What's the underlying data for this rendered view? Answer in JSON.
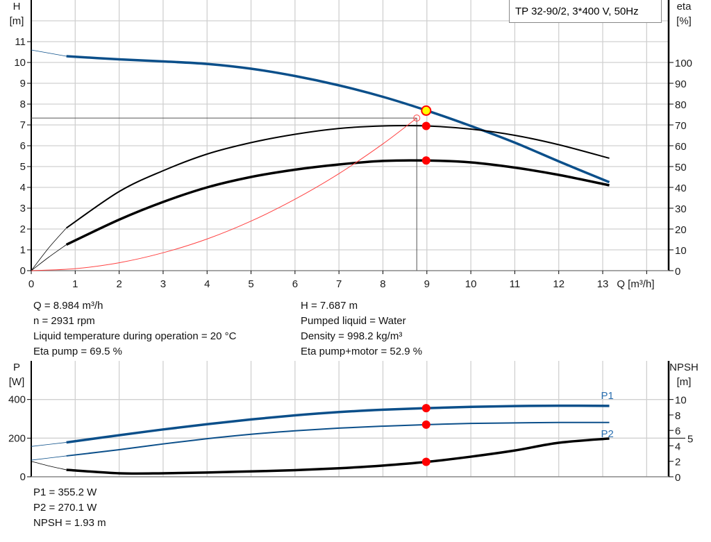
{
  "legend_title": "TP 32-90/2, 3*400 V, 50Hz",
  "info_upper_left": [
    "Q = 8.984 m³/h",
    "n = 2931 rpm",
    "Liquid temperature during operation = 20 °C",
    "Eta pump = 69.5 %"
  ],
  "info_upper_right": [
    "H = 7.687 m",
    "Pumped liquid = Water",
    "Density = 998.2 kg/m³",
    "Eta pump+motor = 52.9 %"
  ],
  "info_lower": [
    "P1 = 355.2 W",
    "P2 = 270.1 W",
    "NPSH = 1.93 m"
  ],
  "colors": {
    "head": "#0b4f8a",
    "power": "#0b4f8a",
    "eta": "#000000",
    "system": "#ff4040",
    "duty_point": "#ff0000",
    "duty_head": "#ffff00",
    "grid": "#d0d0d0"
  },
  "chart_data": [
    {
      "type": "line",
      "ylabel_left": "H\n[m]",
      "ylabel_right": "eta\n[%]",
      "xlabel": "Q [m³/h]",
      "xlim": [
        0,
        14.5
      ],
      "ylim_left": [
        0,
        13
      ],
      "ylim_right": [
        0,
        130
      ],
      "xticks": [
        0,
        1,
        2,
        3,
        4,
        5,
        6,
        7,
        8,
        9,
        10,
        11,
        12,
        13
      ],
      "yticks_left": [
        0,
        1,
        2,
        3,
        4,
        5,
        6,
        7,
        8,
        9,
        10,
        11
      ],
      "yticks_right": [
        0,
        10,
        20,
        30,
        40,
        50,
        60,
        70,
        80,
        90,
        100
      ],
      "grid": true,
      "series": [
        {
          "id": "H",
          "axis": "left",
          "x": [
            0.8,
            2,
            3,
            4,
            5,
            6,
            7,
            8,
            9,
            10,
            11,
            12,
            13.15
          ],
          "y": [
            10.3,
            10.15,
            10.05,
            9.93,
            9.7,
            9.35,
            8.9,
            8.35,
            7.69,
            6.95,
            6.15,
            5.25,
            4.25
          ],
          "ext": [
            [
              0,
              10.6
            ],
            [
              0.8,
              10.3
            ]
          ]
        },
        {
          "id": "eta_pump",
          "axis": "right",
          "x": [
            0.8,
            2,
            3,
            4,
            5,
            6,
            7,
            8,
            9,
            10,
            11,
            12,
            13.15
          ],
          "y": [
            20.5,
            38,
            48,
            56,
            61.5,
            65.5,
            68.3,
            69.5,
            69.5,
            68,
            65,
            60.5,
            54
          ],
          "ext": [
            [
              0,
              0
            ],
            [
              0.4,
              11
            ],
            [
              0.8,
              20.5
            ]
          ]
        },
        {
          "id": "eta_pump_motor",
          "axis": "right",
          "x": [
            0.8,
            2,
            3,
            4,
            5,
            6,
            7,
            8,
            9,
            10,
            11,
            12,
            13.15
          ],
          "y": [
            12.5,
            24.5,
            33,
            40,
            45,
            48.5,
            51,
            52.7,
            52.9,
            52,
            49.5,
            46,
            41
          ],
          "ext": [
            [
              0,
              0
            ],
            [
              0.4,
              6.5
            ],
            [
              0.8,
              12.5
            ]
          ]
        },
        {
          "id": "system",
          "axis": "left",
          "x": [
            0,
            1,
            2,
            3,
            4,
            5,
            6,
            7,
            8,
            8.77
          ],
          "y": [
            0,
            0.095,
            0.38,
            0.86,
            1.52,
            2.38,
            3.43,
            4.66,
            6.09,
            7.33
          ]
        }
      ],
      "requested_point": {
        "Q": 8.77,
        "H": 7.33
      },
      "duty_point": {
        "Q": 8.984,
        "H": 7.687,
        "eta_pump": 69.5,
        "eta_pump_motor": 52.9
      }
    },
    {
      "type": "line",
      "ylabel_left": "P\n[W]",
      "ylabel_right": "NPSH\n[m]",
      "xlim": [
        0,
        14.5
      ],
      "ylim_left": [
        0,
        600
      ],
      "ylim_right": [
        0,
        15
      ],
      "yticks_left": [
        0,
        200,
        400
      ],
      "yticks_right": [
        0,
        2,
        4,
        5,
        6,
        8,
        10
      ],
      "grid": true,
      "series": [
        {
          "id": "P1",
          "name": "P1",
          "axis": "left",
          "x": [
            0.8,
            2,
            3,
            4,
            5,
            6,
            7,
            8,
            9,
            10,
            11,
            12,
            13.15
          ],
          "y": [
            178,
            215,
            245,
            272,
            297,
            318,
            335,
            347,
            355.2,
            362,
            366,
            368,
            367
          ],
          "ext": [
            [
              0,
              157
            ],
            [
              0.8,
              178
            ]
          ]
        },
        {
          "id": "P2",
          "name": "P2",
          "axis": "left",
          "x": [
            0.8,
            2,
            3,
            4,
            5,
            6,
            7,
            8,
            9,
            10,
            11,
            12,
            13.15
          ],
          "y": [
            108,
            140,
            170,
            197,
            220,
            238,
            252,
            262,
            270.1,
            276,
            279,
            281,
            281
          ],
          "ext": [
            [
              0,
              86
            ],
            [
              0.8,
              108
            ]
          ]
        },
        {
          "id": "NPSH",
          "axis": "right",
          "x": [
            0.8,
            2,
            3,
            4,
            5,
            6,
            7,
            8,
            9,
            10,
            11,
            12,
            13.15
          ],
          "y": [
            0.9,
            0.45,
            0.45,
            0.55,
            0.7,
            0.85,
            1.1,
            1.45,
            1.93,
            2.6,
            3.4,
            4.4,
            4.95
          ],
          "ext": [
            [
              0,
              2.0
            ],
            [
              0.4,
              1.4
            ],
            [
              0.8,
              0.9
            ]
          ]
        }
      ],
      "duty_point": {
        "Q": 8.984,
        "P1": 355.2,
        "P2": 270.1,
        "NPSH": 1.93
      }
    }
  ]
}
